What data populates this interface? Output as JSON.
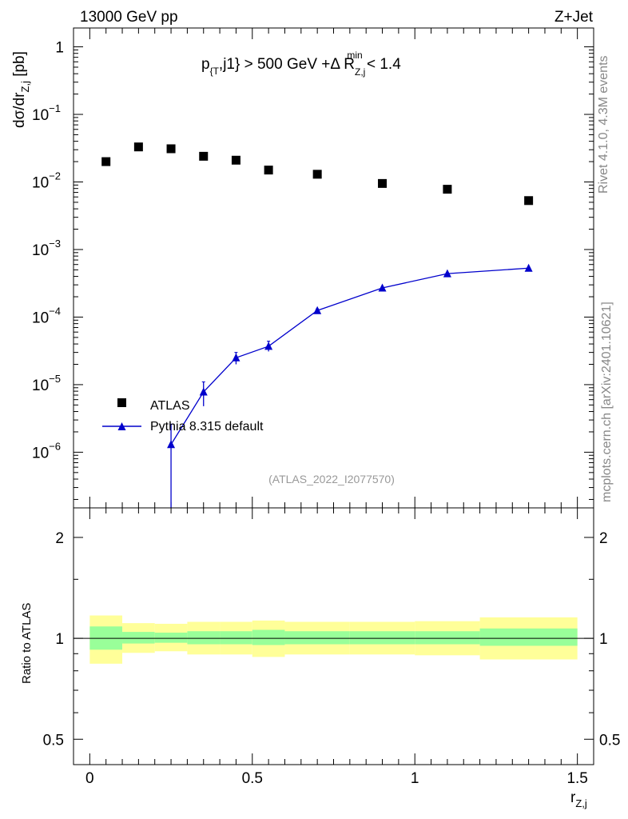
{
  "header": {
    "left": "13000 GeV pp",
    "right": "Z+Jet"
  },
  "cut_label": {
    "p": "p",
    "p_sub": "{T",
    "rest1": ",j1} > 500 GeV +Δ R",
    "r_sub": "Z,j",
    "r_sup": "min",
    "rest2": " < 1.4"
  },
  "side_labels": {
    "rivet": "Rivet 4.1.0,  4.3M events",
    "mcplots": "mcplots.cern.ch [arXiv:2401.10621]"
  },
  "watermark": "(ATLAS_2022_I2077570)",
  "colors": {
    "mc": "#0000cc",
    "band_inner": "#99ff99",
    "band_outer": "#ffff99",
    "data": "#000000"
  },
  "chart_data": [
    {
      "type": "scatter",
      "panel": "main",
      "yscale": "log",
      "ylabel": "dσ/dr",
      "ylabel_sub": "Z,j",
      "ylabel_unit": " [pb]",
      "xlim": [
        -0.05,
        1.55
      ],
      "ylim": [
        1.5e-07,
        1.9
      ],
      "y_tick_labels": [
        {
          "value": 1,
          "base": "1",
          "exp": ""
        },
        {
          "value": 0.1,
          "base": "10",
          "exp": "−1"
        },
        {
          "value": 0.01,
          "base": "10",
          "exp": "−2"
        },
        {
          "value": 0.001,
          "base": "10",
          "exp": "−3"
        },
        {
          "value": 0.0001,
          "base": "10",
          "exp": "−4"
        },
        {
          "value": 1e-05,
          "base": "10",
          "exp": "−5"
        },
        {
          "value": 1e-06,
          "base": "10",
          "exp": "−6"
        }
      ],
      "legend": {
        "position": "center-left",
        "entries": [
          {
            "label": "ATLAS",
            "style": "square-marker"
          },
          {
            "label": "Pythia 8.315 default",
            "style": "line-triangle"
          }
        ]
      },
      "series": [
        {
          "name": "ATLAS",
          "marker": "square",
          "x": [
            0.05,
            0.15,
            0.25,
            0.35,
            0.45,
            0.55,
            0.7,
            0.9,
            1.1,
            1.35
          ],
          "y": [
            0.02,
            0.033,
            0.031,
            0.024,
            0.021,
            0.015,
            0.013,
            0.0095,
            0.0078,
            0.0053
          ],
          "xerr": [
            0.05,
            0.05,
            0.05,
            0.05,
            0.05,
            0.05,
            0.1,
            0.1,
            0.1,
            0.15
          ]
        },
        {
          "name": "Pythia 8.315 default",
          "marker": "triangle",
          "x": [
            0.25,
            0.35,
            0.45,
            0.55,
            0.7,
            0.9,
            1.1,
            1.35
          ],
          "y": [
            1.3e-06,
            7.8e-06,
            2.5e-05,
            3.7e-05,
            0.000125,
            0.00027,
            0.00044,
            0.00053
          ],
          "ylow": [
            1e-09,
            4.8e-06,
            2e-05,
            3.1e-05,
            0.000118,
            0.000262,
            0.00043,
            0.00052
          ],
          "yhigh": [
            2.6e-06,
            1.1e-05,
            3e-05,
            4.4e-05,
            0.000132,
            0.000278,
            0.00045,
            0.00054
          ]
        }
      ]
    },
    {
      "type": "line",
      "panel": "ratio",
      "yscale": "log",
      "ylabel": "Ratio to ATLAS",
      "xlabel": "r",
      "xlabel_sub": "Z,j",
      "xlim": [
        -0.05,
        1.55
      ],
      "ylim": [
        0.42,
        2.45
      ],
      "x_tick_labels": [
        {
          "value": 0,
          "label": "0"
        },
        {
          "value": 0.5,
          "label": "0.5"
        },
        {
          "value": 1,
          "label": "1"
        },
        {
          "value": 1.5,
          "label": "1.5"
        }
      ],
      "y_tick_labels": [
        {
          "value": 0.5,
          "label": "0.5"
        },
        {
          "value": 1,
          "label": "1"
        },
        {
          "value": 2,
          "label": "2"
        }
      ],
      "bands": {
        "edges": [
          0,
          0.1,
          0.2,
          0.3,
          0.4,
          0.5,
          0.6,
          0.8,
          1.0,
          1.2,
          1.5
        ],
        "inner": [
          [
            0.925,
            1.085
          ],
          [
            0.965,
            1.045
          ],
          [
            0.97,
            1.04
          ],
          [
            0.96,
            1.05
          ],
          [
            0.96,
            1.05
          ],
          [
            0.955,
            1.06
          ],
          [
            0.96,
            1.05
          ],
          [
            0.96,
            1.05
          ],
          [
            0.96,
            1.05
          ],
          [
            0.95,
            1.07
          ]
        ],
        "outer": [
          [
            0.84,
            1.17
          ],
          [
            0.905,
            1.11
          ],
          [
            0.915,
            1.105
          ],
          [
            0.895,
            1.12
          ],
          [
            0.895,
            1.12
          ],
          [
            0.88,
            1.13
          ],
          [
            0.895,
            1.12
          ],
          [
            0.895,
            1.12
          ],
          [
            0.89,
            1.125
          ],
          [
            0.865,
            1.155
          ]
        ]
      },
      "reference": 1
    }
  ]
}
